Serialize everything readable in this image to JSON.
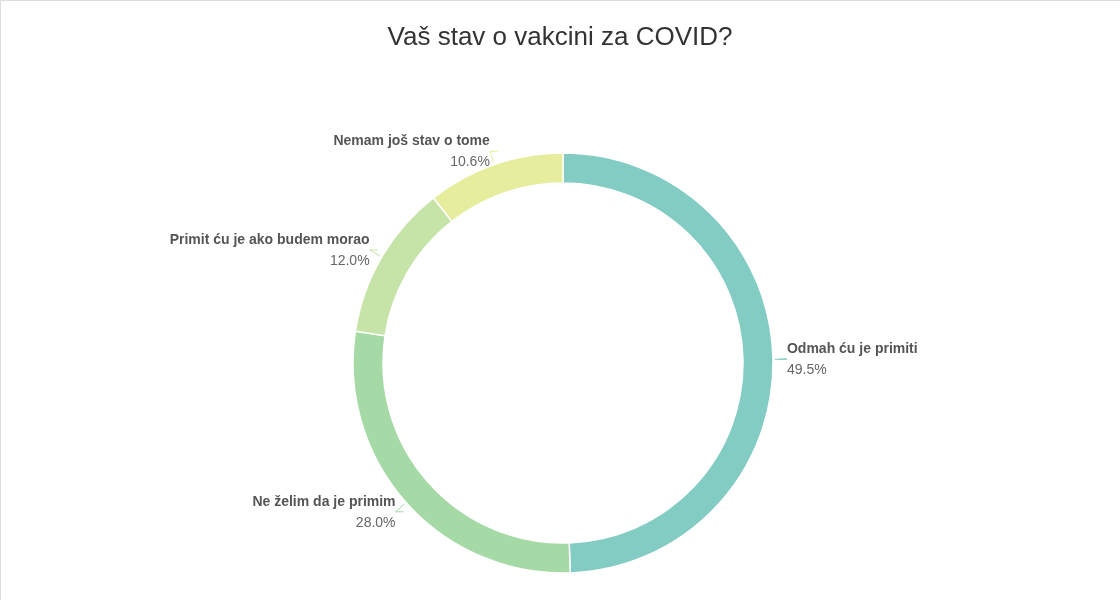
{
  "chart_data": {
    "type": "donut",
    "title": "Vaš stav o vakcini za COVID?",
    "categories": [
      "Odmah ću je primiti",
      "Ne želim da je primim",
      "Primit ću je ako budem morao",
      "Nemam još stav o tome"
    ],
    "values": [
      49.5,
      28.0,
      12.0,
      10.6
    ],
    "value_labels": [
      "49.5%",
      "28.0%",
      "12.0%",
      "10.6%"
    ],
    "colors": [
      "#82ccc4",
      "#a5d9a5",
      "#c6e3a8",
      "#e6ee9e"
    ],
    "legend": false
  }
}
